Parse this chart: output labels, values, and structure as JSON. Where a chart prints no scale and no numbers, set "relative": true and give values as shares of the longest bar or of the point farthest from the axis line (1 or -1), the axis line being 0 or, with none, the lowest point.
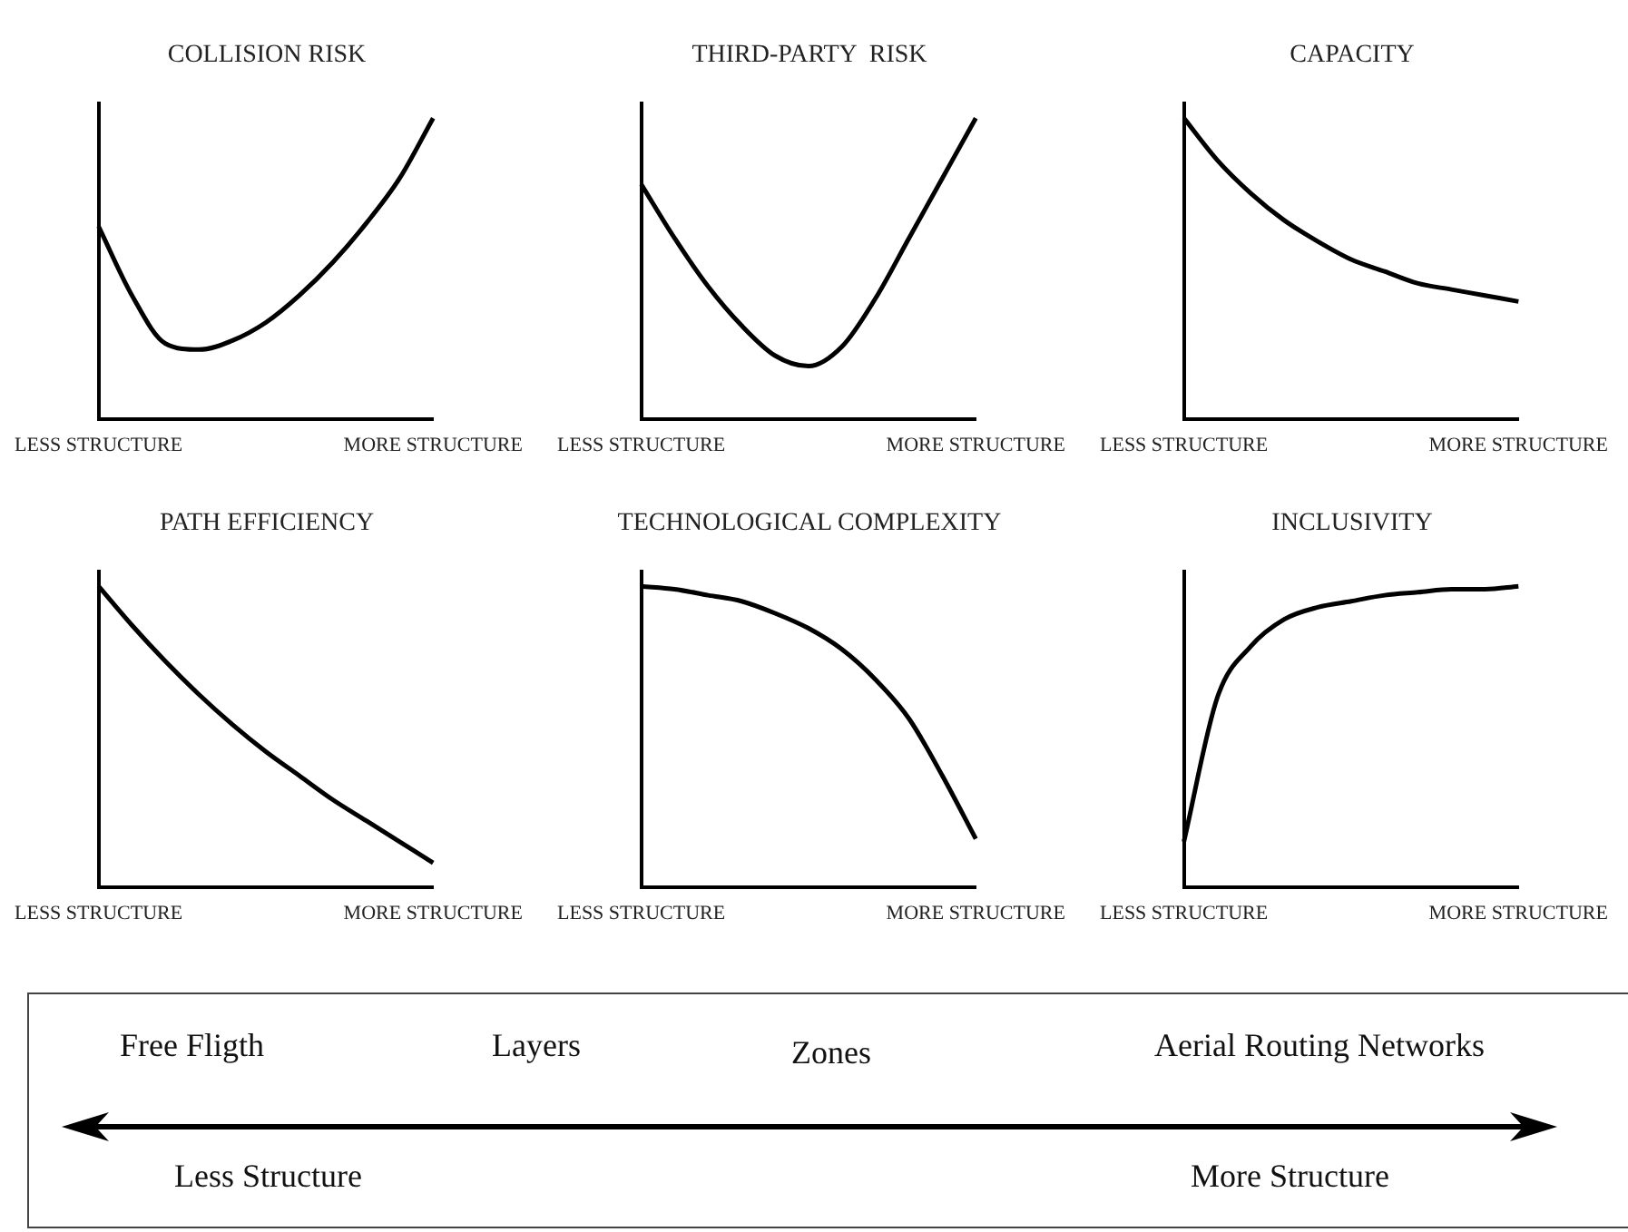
{
  "chart_data": [
    {
      "type": "line",
      "title": "COLLISION RISK",
      "relative": true,
      "color": "#000000",
      "categories": [
        "LESS STRUCTURE",
        null,
        null,
        null,
        null,
        null,
        null,
        null,
        null,
        null,
        "MORE STRUCTURE"
      ],
      "values": [
        0.64,
        0.41,
        0.25,
        0.23,
        0.26,
        0.32,
        0.41,
        0.52,
        0.65,
        0.8,
        1
      ]
    },
    {
      "type": "line",
      "title": "THIRD-PARTY  RISK",
      "relative": true,
      "color": "#000000",
      "categories": [
        "LESS STRUCTURE",
        null,
        null,
        null,
        null,
        null,
        null,
        null,
        null,
        null,
        "MORE STRUCTURE"
      ],
      "values": [
        0.78,
        0.6,
        0.44,
        0.31,
        0.21,
        0.175,
        0.24,
        0.4,
        0.6,
        0.8,
        1
      ]
    },
    {
      "type": "line",
      "title": "CAPACITY",
      "relative": true,
      "color": "#000000",
      "categories": [
        "LESS STRUCTURE",
        null,
        null,
        null,
        null,
        null,
        null,
        null,
        null,
        null,
        "MORE STRUCTURE"
      ],
      "values": [
        1,
        0.86,
        0.75,
        0.66,
        0.59,
        0.53,
        0.49,
        0.45,
        0.43,
        0.41,
        0.39
      ]
    },
    {
      "type": "line",
      "title": "PATH EFFICIENCY",
      "relative": true,
      "color": "#000000",
      "categories": [
        "LESS STRUCTURE",
        null,
        null,
        null,
        null,
        null,
        null,
        null,
        null,
        null,
        "MORE STRUCTURE"
      ],
      "values": [
        1,
        0.87,
        0.75,
        0.64,
        0.54,
        0.45,
        0.37,
        0.29,
        0.22,
        0.15,
        0.08
      ]
    },
    {
      "type": "line",
      "title": "TECHNOLOGICAL COMPLEXITY",
      "relative": true,
      "color": "#000000",
      "categories": [
        "LESS STRUCTURE",
        null,
        null,
        null,
        null,
        null,
        null,
        null,
        null,
        null,
        "MORE STRUCTURE"
      ],
      "values": [
        1,
        0.99,
        0.97,
        0.95,
        0.91,
        0.86,
        0.79,
        0.69,
        0.56,
        0.37,
        0.16
      ]
    },
    {
      "type": "line",
      "title": "INCLUSIVITY",
      "relative": true,
      "color": "#000000",
      "categories": [
        "LESS STRUCTURE",
        null,
        null,
        null,
        null,
        null,
        null,
        null,
        null,
        null,
        "MORE STRUCTURE"
      ],
      "values": [
        0.15,
        0.63,
        0.8,
        0.89,
        0.93,
        0.95,
        0.97,
        0.98,
        0.99,
        0.99,
        1
      ]
    },
    {
      "type": "other",
      "annotations": [
        "Free Fligth",
        "Layers",
        "Zones",
        "Aerial Routing Networks",
        "Less Structure",
        "More Structure"
      ]
    }
  ]
}
